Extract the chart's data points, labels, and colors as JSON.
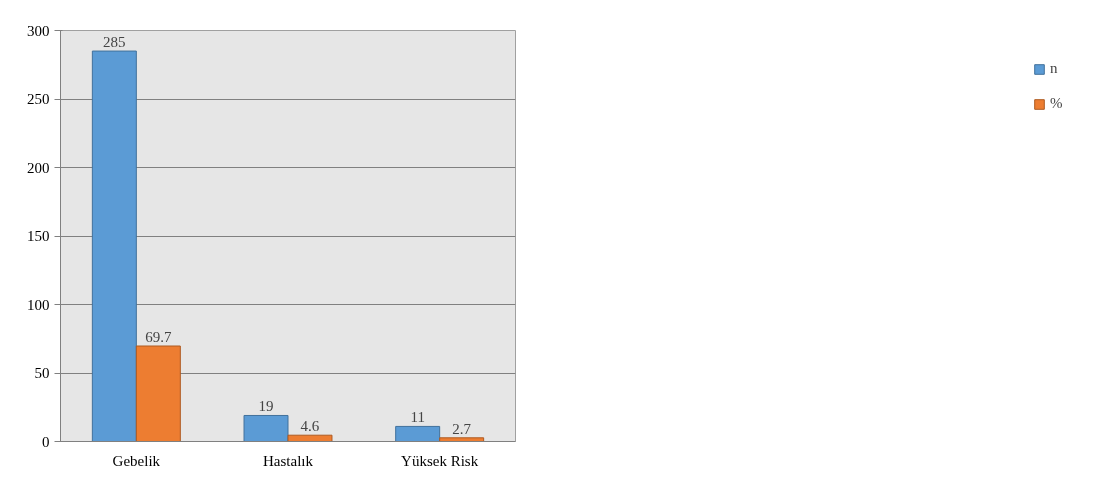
{
  "chart_data": {
    "type": "bar",
    "categories": [
      "Gebelik",
      "Hastalık",
      "Yüksek Risk"
    ],
    "series": [
      {
        "name": "n",
        "color": "#5b9bd5",
        "values": [
          285,
          19,
          11
        ]
      },
      {
        "name": "%",
        "color": "#ed7d31",
        "values": [
          69.7,
          4.6,
          2.7
        ]
      }
    ],
    "ylim": [
      0,
      300
    ],
    "yticks": [
      0,
      50,
      100,
      150,
      200,
      250,
      300
    ],
    "grid": "y",
    "legend": "right",
    "data_labels": true
  }
}
